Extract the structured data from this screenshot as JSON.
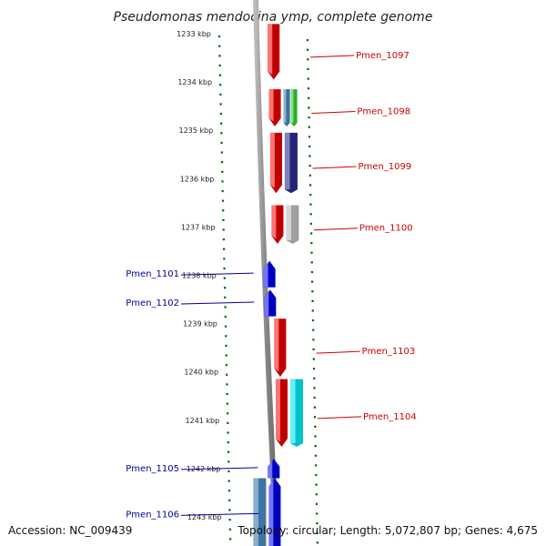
{
  "title": "Pseudomonas mendocina ymp, complete genome",
  "footer": {
    "accession": "Accession: NC_009439",
    "summary": "Topology: circular; Length: 5,072,807 bp; Genes: 4,675"
  },
  "colors": {
    "forward_label": "#cc0000",
    "reverse_label": "#000099",
    "tick": "#006600",
    "backbone": "#888888"
  },
  "tick_labels": [
    "1233 kbp",
    "1234 kbp",
    "1235 kbp",
    "1236 kbp",
    "1237 kbp",
    "1238 kbp",
    "1239 kbp",
    "1240 kbp",
    "1241 kbp",
    "1242 kbp",
    "1243 kbp"
  ],
  "genes": [
    {
      "name": "Pmen_1097",
      "strand": "+",
      "start_kbp": 1232.8,
      "end_kbp": 1233.95,
      "color": "#ff0000",
      "features": []
    },
    {
      "name": "Pmen_1098",
      "strand": "+",
      "start_kbp": 1234.15,
      "end_kbp": 1234.92,
      "color": "#ff0000",
      "features": [
        {
          "color": "#4682b4",
          "start_kbp": 1234.15,
          "end_kbp": 1234.92
        },
        {
          "color": "#33cc33",
          "start_kbp": 1234.15,
          "end_kbp": 1234.92
        }
      ]
    },
    {
      "name": "Pmen_1099",
      "strand": "+",
      "start_kbp": 1235.05,
      "end_kbp": 1236.3,
      "color": "#ff0000",
      "features": [
        {
          "color": "#2a2a8a",
          "start_kbp": 1235.05,
          "end_kbp": 1236.3
        }
      ]
    },
    {
      "name": "Pmen_1100",
      "strand": "+",
      "start_kbp": 1236.55,
      "end_kbp": 1237.35,
      "color": "#ff0000",
      "features": [
        {
          "color": "#bbbbbb",
          "start_kbp": 1236.55,
          "end_kbp": 1237.35
        }
      ]
    },
    {
      "name": "Pmen_1101",
      "strand": "-",
      "start_kbp": 1237.7,
      "end_kbp": 1238.25,
      "color": "#0000ff",
      "features": []
    },
    {
      "name": "Pmen_1102",
      "strand": "-",
      "start_kbp": 1238.3,
      "end_kbp": 1238.85,
      "color": "#0000ff",
      "features": []
    },
    {
      "name": "Pmen_1103",
      "strand": "+",
      "start_kbp": 1238.9,
      "end_kbp": 1240.1,
      "color": "#ff0000",
      "features": []
    },
    {
      "name": "Pmen_1104",
      "strand": "+",
      "start_kbp": 1240.15,
      "end_kbp": 1241.55,
      "color": "#ff0000",
      "features": [
        {
          "color": "#00e5ee",
          "start_kbp": 1240.15,
          "end_kbp": 1241.55
        }
      ]
    },
    {
      "name": "Pmen_1105",
      "strand": "-",
      "start_kbp": 1241.8,
      "end_kbp": 1242.2,
      "color": "#0000ff",
      "features": []
    },
    {
      "name": "Pmen_1106",
      "strand": "-",
      "start_kbp": 1242.2,
      "end_kbp": 1243.7,
      "color": "#0000ff",
      "features": [
        {
          "color": "#4682b4",
          "start_kbp": 1242.2,
          "end_kbp": 1243.7
        }
      ]
    }
  ]
}
